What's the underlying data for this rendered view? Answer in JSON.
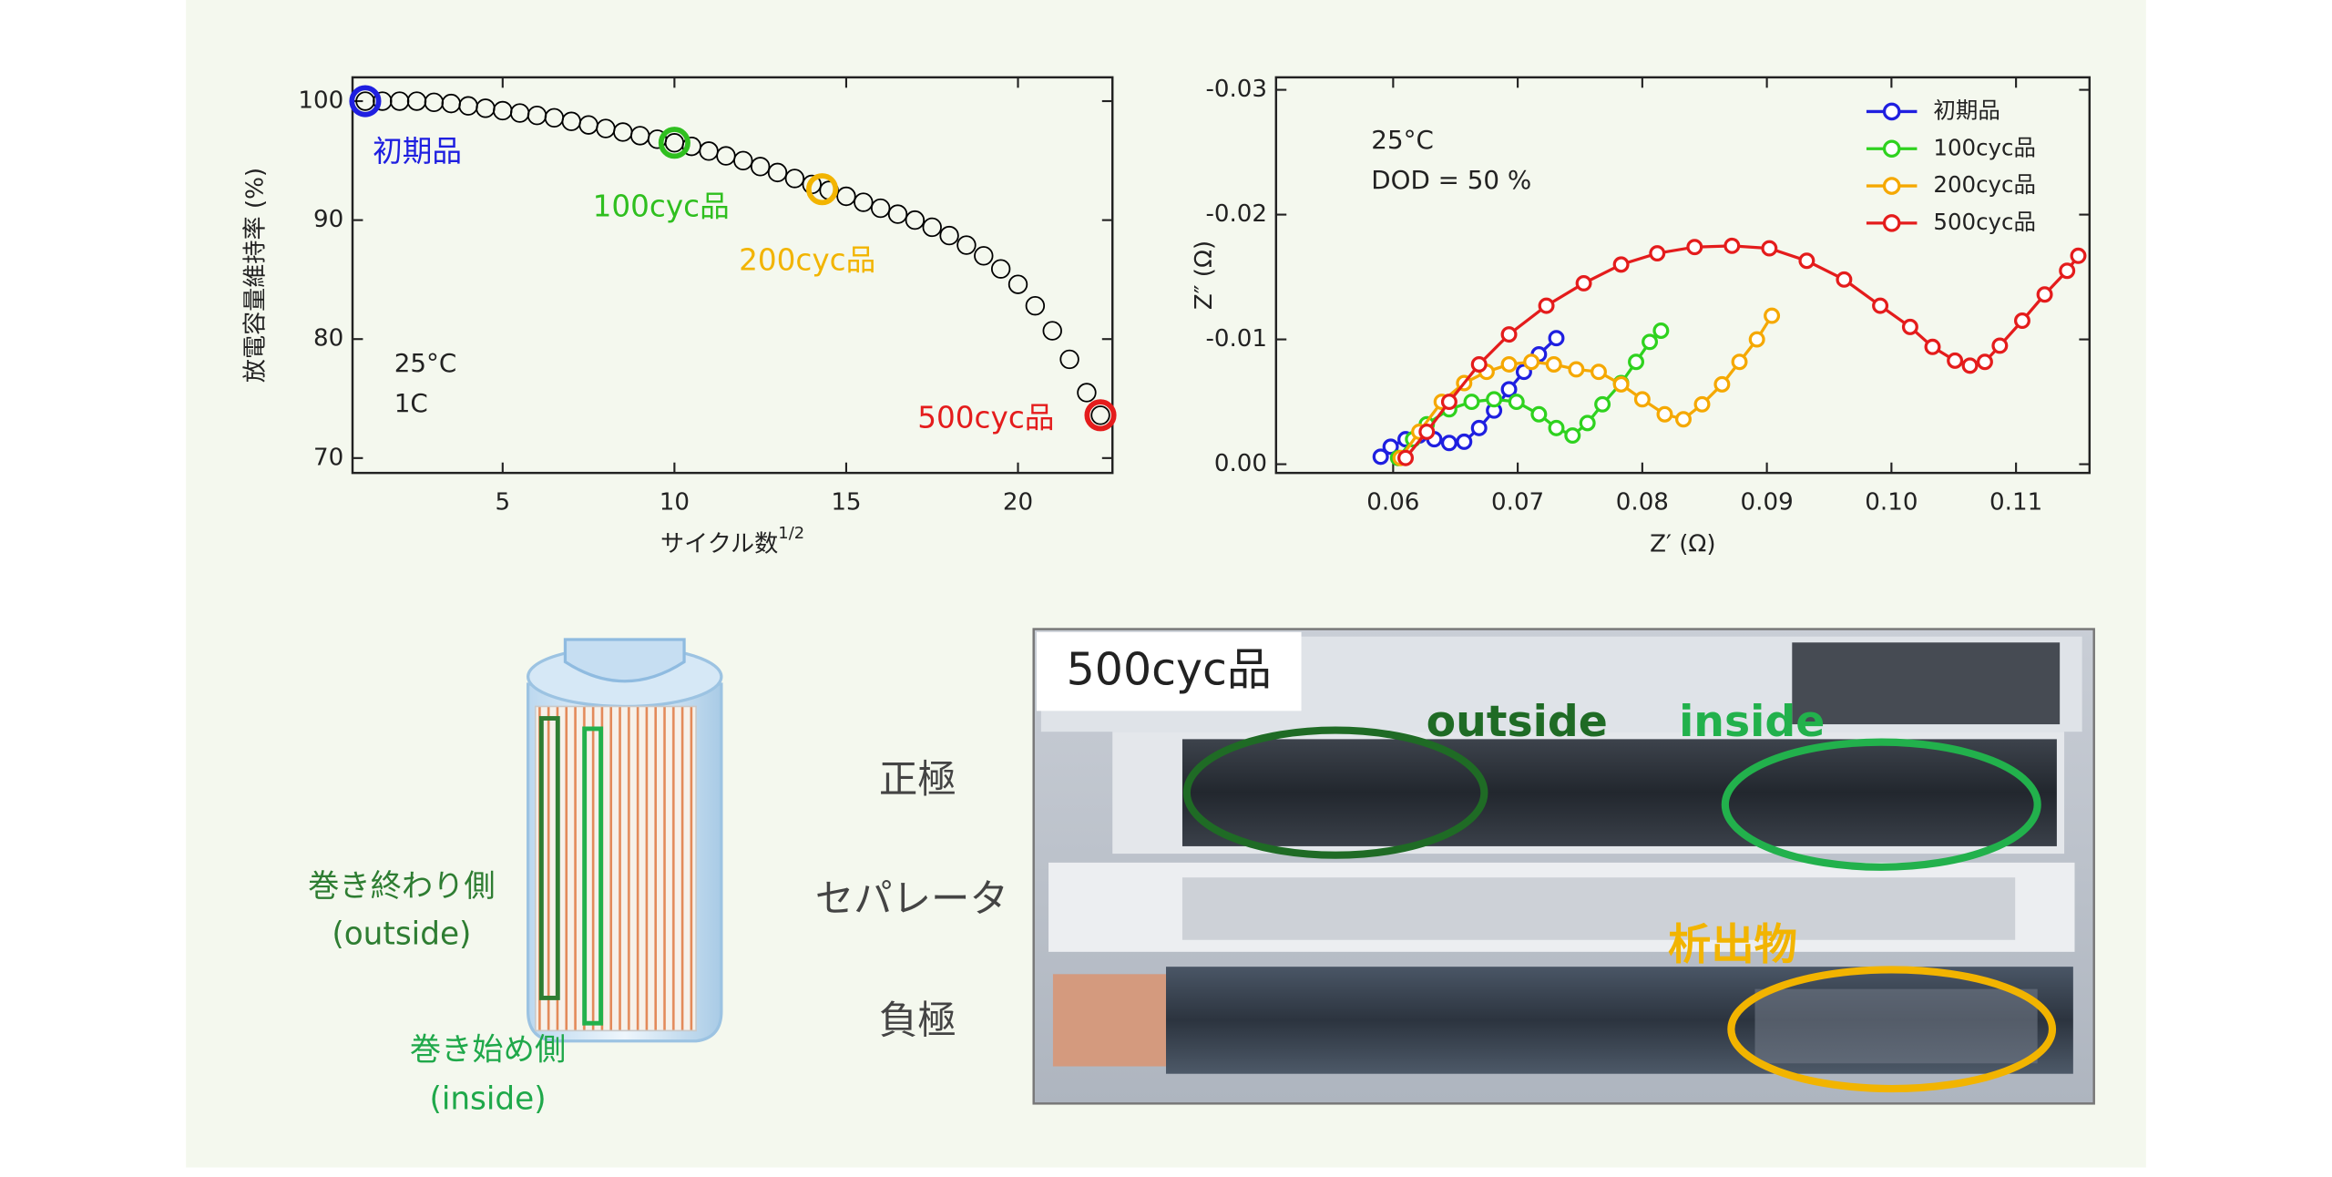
{
  "chart_data": [
    {
      "type": "scatter",
      "ylabel": "放電容量維持率 (%)",
      "xlabel": "サイクル数",
      "xlabel_superscript": "1/2",
      "annotation": [
        "25°C",
        "1C"
      ],
      "xlim": [
        0.63,
        22.75
      ],
      "ylim": [
        68.75,
        102
      ],
      "xticks": [
        5,
        10,
        15,
        20
      ],
      "yticks": [
        70,
        80,
        90,
        100
      ],
      "legend": false,
      "series": [
        {
          "color": "#000000",
          "x": [
            1,
            1.5,
            2,
            2.5,
            3,
            3.5,
            4,
            4.5,
            5,
            5.5,
            6,
            6.5,
            7,
            7.5,
            8,
            8.5,
            9,
            9.5,
            10,
            10.5,
            11,
            11.5,
            12,
            12.5,
            13,
            13.5,
            14,
            14.5,
            15,
            15.5,
            16,
            16.5,
            17,
            17.5,
            18,
            18.5,
            19,
            19.5,
            20,
            20.5,
            21,
            21.5,
            22,
            22.4
          ],
          "values": [
            100,
            100,
            100,
            100,
            99.9,
            99.8,
            99.6,
            99.4,
            99.2,
            99,
            98.8,
            98.6,
            98.3,
            98,
            97.7,
            97.4,
            97.1,
            96.8,
            96.5,
            96.2,
            95.8,
            95.4,
            95,
            94.5,
            94,
            93.5,
            93,
            92.5,
            92,
            91.5,
            91,
            90.5,
            90,
            89.4,
            88.7,
            87.9,
            87,
            85.9,
            84.6,
            82.8,
            80.7,
            78.3,
            75.5,
            73.6
          ]
        },
        {
          "name": "初期品",
          "color": "#1f1fe0",
          "x": [
            1
          ],
          "values": [
            100
          ]
        },
        {
          "name": "100cyc品",
          "color": "#2fbf1f",
          "x": [
            10
          ],
          "values": [
            96.5
          ]
        },
        {
          "name": "200cyc品",
          "color": "#f2b400",
          "x": [
            14.3
          ],
          "values": [
            92.6
          ]
        },
        {
          "name": "500cyc品",
          "color": "#e41c1c",
          "x": [
            22.4
          ],
          "values": [
            73.6
          ]
        }
      ]
    },
    {
      "type": "line",
      "ylabel": "Z″ (Ω)",
      "xlabel": "Z′ (Ω)",
      "annotation": [
        "25°C",
        "DOD = 50 %"
      ],
      "xlim": [
        0.0506,
        0.1159
      ],
      "ylim": [
        0.0007,
        -0.031
      ],
      "xticks": [
        0.06,
        0.07,
        0.08,
        0.09,
        {
          "value": 0.1,
          "label": "0.10"
        },
        0.11
      ],
      "yticks": [
        -0.03,
        -0.02,
        -0.01,
        {
          "value": 0,
          "label": "0.00"
        }
      ],
      "legend": "upper right",
      "series": [
        {
          "name": "初期品",
          "color": "#1f1fe0",
          "x": [
            0.059,
            0.0598,
            0.061,
            0.0621,
            0.0633,
            0.0645,
            0.0657,
            0.0669,
            0.0681,
            0.0693,
            0.0705,
            0.0717,
            0.0731
          ],
          "values": [
            -0.0006,
            -0.0014,
            -0.002,
            -0.0023,
            -0.002,
            -0.0017,
            -0.0018,
            -0.0029,
            -0.0043,
            -0.006,
            -0.0074,
            -0.0088,
            -0.0101
          ]
        },
        {
          "name": "100cyc品",
          "color": "#2fd21f",
          "x": [
            0.0604,
            0.0616,
            0.0627,
            0.0645,
            0.0663,
            0.0681,
            0.0699,
            0.0717,
            0.0731,
            0.0744,
            0.0756,
            0.0768,
            0.0783,
            0.0795,
            0.0806,
            0.0815
          ],
          "values": [
            -0.0005,
            -0.002,
            -0.0032,
            -0.0044,
            -0.005,
            -0.0052,
            -0.005,
            -0.004,
            -0.0029,
            -0.0023,
            -0.0033,
            -0.0048,
            -0.0065,
            -0.0082,
            -0.0098,
            -0.0107
          ]
        },
        {
          "name": "200cyc品",
          "color": "#f5a800",
          "x": [
            0.0606,
            0.0621,
            0.0639,
            0.0657,
            0.0675,
            0.0693,
            0.0711,
            0.0729,
            0.0747,
            0.0765,
            0.0783,
            0.08,
            0.0818,
            0.0833,
            0.0848,
            0.0864,
            0.0878,
            0.0892,
            0.0904
          ],
          "values": [
            -0.0005,
            -0.0026,
            -0.005,
            -0.0065,
            -0.0074,
            -0.008,
            -0.0082,
            -0.008,
            -0.0076,
            -0.0074,
            -0.0064,
            -0.0052,
            -0.004,
            -0.0036,
            -0.0048,
            -0.0064,
            -0.0082,
            -0.01,
            -0.0119
          ]
        },
        {
          "name": "500cyc品",
          "color": "#e41c1c",
          "x": [
            0.061,
            0.0627,
            0.0645,
            0.0669,
            0.0693,
            0.0723,
            0.0753,
            0.0783,
            0.0812,
            0.0842,
            0.0872,
            0.0902,
            0.0932,
            0.0962,
            0.0991,
            0.1015,
            0.1033,
            0.1051,
            0.1063,
            0.1075,
            0.1087,
            0.1105,
            0.1123,
            0.1141,
            0.115
          ],
          "values": [
            -0.0005,
            -0.0026,
            -0.005,
            -0.008,
            -0.0104,
            -0.0127,
            -0.0145,
            -0.016,
            -0.0169,
            -0.0174,
            -0.0175,
            -0.0173,
            -0.0163,
            -0.0148,
            -0.0127,
            -0.011,
            -0.0094,
            -0.0083,
            -0.0079,
            -0.0082,
            -0.0095,
            -0.0115,
            -0.0136,
            -0.0155,
            -0.0167
          ]
        }
      ]
    }
  ],
  "illustration": {
    "cell_labels": {
      "outside": [
        "巻き終わり側",
        "(outside)"
      ],
      "inside": [
        "巻き始め側",
        "(inside)"
      ]
    },
    "row_labels": [
      "正極",
      "セパレータ",
      "負極"
    ],
    "photo": {
      "title": "500cyc品",
      "outside": "outside",
      "inside": "inside",
      "deposit": "析出物"
    }
  }
}
